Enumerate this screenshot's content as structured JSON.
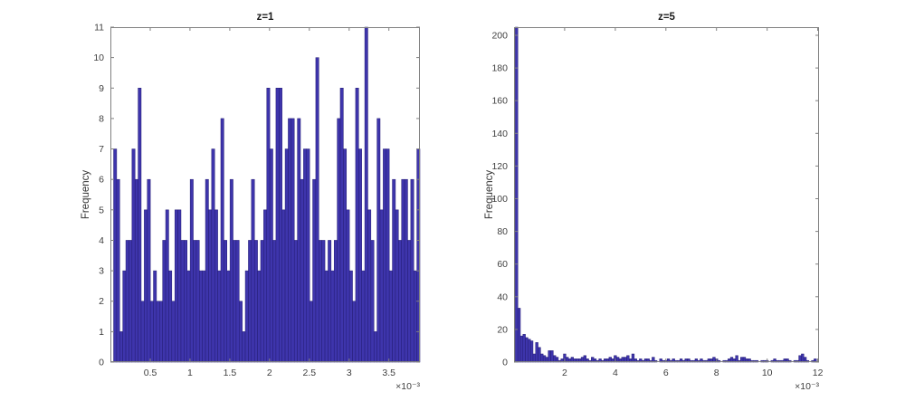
{
  "figure": {
    "background": "#ffffff",
    "bar_fill": "#3E35AC",
    "bar_edge": "#241C74",
    "frame_color": "#808080",
    "tick_color": "#808080",
    "tick_label_color": "#404040",
    "title_color": "#1a1a1a"
  },
  "chart_data": [
    {
      "type": "bar",
      "subtype": "histogram",
      "title": "z=1",
      "xlabel": "",
      "ylabel": "Frequency",
      "x_scale_label": "×10⁻³",
      "xlim": [
        0,
        0.00389
      ],
      "ylim": [
        0,
        11
      ],
      "grid": false,
      "legend": null,
      "xticks": [
        0.0005,
        0.001,
        0.0015,
        0.002,
        0.0025,
        0.003,
        0.0035
      ],
      "xtick_labels": [
        "0.5",
        "1",
        "1.5",
        "2",
        "2.5",
        "3",
        "3.5"
      ],
      "yticks": [
        0,
        1,
        2,
        3,
        4,
        5,
        6,
        7,
        8,
        9,
        10,
        11
      ],
      "ytick_labels": [
        "0",
        "1",
        "2",
        "3",
        "4",
        "5",
        "6",
        "7",
        "8",
        "9",
        "10",
        "11"
      ],
      "bin_start": 4e-05,
      "bin_width": 3.85e-05,
      "values": [
        7,
        6,
        1,
        3,
        4,
        4,
        7,
        6,
        9,
        2,
        5,
        6,
        2,
        3,
        2,
        2,
        4,
        5,
        3,
        2,
        5,
        5,
        4,
        4,
        3,
        6,
        4,
        4,
        3,
        3,
        6,
        5,
        7,
        5,
        3,
        8,
        4,
        3,
        6,
        4,
        4,
        2,
        1,
        3,
        4,
        6,
        4,
        3,
        4,
        5,
        9,
        7,
        4,
        9,
        9,
        5,
        7,
        8,
        8,
        4,
        8,
        6,
        7,
        7,
        2,
        6,
        10,
        4,
        4,
        3,
        4,
        3,
        4,
        8,
        9,
        7,
        5,
        3,
        2,
        9,
        7,
        3,
        11,
        5,
        4,
        1,
        8,
        5,
        7,
        7,
        3,
        6,
        5,
        4,
        6,
        6,
        4,
        6,
        3,
        7
      ]
    },
    {
      "type": "bar",
      "subtype": "histogram",
      "title": "z=5",
      "xlabel": "",
      "ylabel": "Frequency",
      "x_scale_label": "×10⁻³",
      "xlim": [
        0,
        0.01205
      ],
      "ylim": [
        0,
        205
      ],
      "grid": false,
      "legend": null,
      "xticks": [
        0.002,
        0.004,
        0.006,
        0.008,
        0.01,
        0.012
      ],
      "xtick_labels": [
        "2",
        "4",
        "6",
        "8",
        "10",
        "12"
      ],
      "yticks": [
        0,
        20,
        40,
        60,
        80,
        100,
        120,
        140,
        160,
        180,
        200
      ],
      "ytick_labels": [
        "0",
        "20",
        "40",
        "60",
        "80",
        "100",
        "120",
        "140",
        "160",
        "180",
        "200"
      ],
      "bin_start": 5e-05,
      "bin_width": 0.0001,
      "values": [
        205,
        33,
        16,
        17,
        15,
        14,
        13,
        5,
        12,
        9,
        5,
        4,
        3,
        7,
        7,
        4,
        3,
        1,
        2,
        5,
        3,
        2,
        3,
        2,
        2,
        2,
        3,
        4,
        2,
        1,
        3,
        2,
        1,
        2,
        1,
        2,
        2,
        3,
        2,
        4,
        3,
        2,
        3,
        3,
        4,
        2,
        5,
        2,
        1,
        2,
        1,
        2,
        2,
        1,
        3,
        1,
        0,
        2,
        1,
        1,
        2,
        1,
        2,
        1,
        1,
        2,
        1,
        2,
        2,
        1,
        1,
        2,
        1,
        2,
        1,
        1,
        2,
        2,
        3,
        2,
        1,
        0,
        1,
        1,
        2,
        3,
        2,
        4,
        1,
        3,
        3,
        2,
        2,
        1,
        1,
        1,
        0,
        1,
        1,
        1,
        0,
        1,
        2,
        1,
        1,
        1,
        2,
        2,
        1,
        0,
        1,
        1,
        4,
        5,
        3,
        1,
        0,
        1,
        2
      ]
    }
  ]
}
